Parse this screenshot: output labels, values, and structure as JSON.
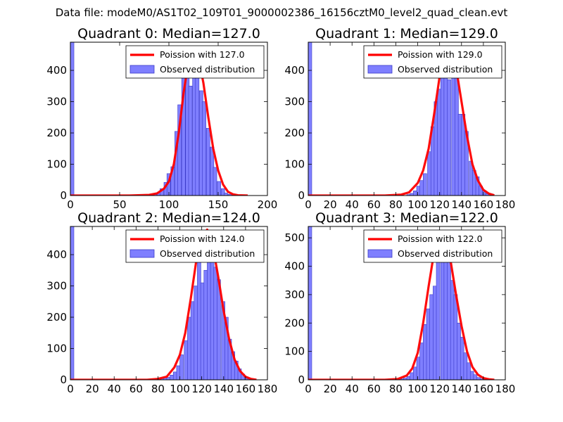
{
  "figure_title": "Data file: modeM0/AS1T02_109T01_9000002386_16156cztM0_level2_quad_clean.evt",
  "colors": {
    "hist_fill": "#7f7fff",
    "hist_edge": "#3a3ac8",
    "poisson_line": "#ff0000",
    "axes": "#000000"
  },
  "chart_data": [
    {
      "type": "bar",
      "title": "Quadrant 0: Median=127.0",
      "xlim": [
        0,
        200
      ],
      "ylim": [
        0,
        490
      ],
      "xticks": [
        0,
        50,
        100,
        150,
        200
      ],
      "xtick_labels": [
        "0",
        "50",
        "100",
        "150",
        "200"
      ],
      "yticks": [
        0,
        100,
        200,
        300,
        400
      ],
      "ytick_labels": [
        "0",
        "100",
        "200",
        "300",
        "400"
      ],
      "legend": {
        "position": "top-right",
        "line_label": "Poission with 127.0",
        "patch_label": "Observed distribution"
      },
      "bin_width": 3.6,
      "bins": [
        [
          0,
          490
        ],
        [
          80,
          3
        ],
        [
          84,
          6
        ],
        [
          88,
          9
        ],
        [
          91,
          22
        ],
        [
          95,
          42
        ],
        [
          98,
          70
        ],
        [
          102,
          92
        ],
        [
          106,
          205
        ],
        [
          109,
          290
        ],
        [
          113,
          375
        ],
        [
          117,
          395
        ],
        [
          120,
          350
        ],
        [
          124,
          440
        ],
        [
          127,
          470
        ],
        [
          131,
          335
        ],
        [
          134,
          300
        ],
        [
          138,
          215
        ],
        [
          142,
          155
        ],
        [
          145,
          90
        ],
        [
          149,
          45
        ],
        [
          153,
          22
        ],
        [
          156,
          8
        ],
        [
          160,
          4
        ],
        [
          164,
          2
        ]
      ],
      "poisson": [
        [
          0,
          0
        ],
        [
          60,
          0
        ],
        [
          80,
          2
        ],
        [
          88,
          7
        ],
        [
          95,
          22
        ],
        [
          100,
          45
        ],
        [
          105,
          100
        ],
        [
          110,
          200
        ],
        [
          115,
          330
        ],
        [
          120,
          430
        ],
        [
          125,
          475
        ],
        [
          130,
          440
        ],
        [
          135,
          360
        ],
        [
          140,
          250
        ],
        [
          145,
          150
        ],
        [
          150,
          80
        ],
        [
          155,
          35
        ],
        [
          160,
          12
        ],
        [
          165,
          4
        ],
        [
          170,
          1
        ],
        [
          180,
          0
        ]
      ]
    },
    {
      "type": "bar",
      "title": "Quadrant 1: Median=129.0",
      "xlim": [
        0,
        180
      ],
      "ylim": [
        0,
        490
      ],
      "xticks": [
        0,
        20,
        40,
        60,
        80,
        100,
        120,
        140,
        160,
        180
      ],
      "xtick_labels": [
        "0",
        "20",
        "40",
        "60",
        "80",
        "100",
        "120",
        "140",
        "160",
        "180"
      ],
      "yticks": [
        0,
        100,
        200,
        300,
        400
      ],
      "ytick_labels": [
        "0",
        "100",
        "200",
        "300",
        "400"
      ],
      "legend": {
        "position": "top-right",
        "line_label": "Poission with 129.0",
        "patch_label": "Observed distribution"
      },
      "bin_width": 3.2,
      "bins": [
        [
          0,
          490
        ],
        [
          90,
          3
        ],
        [
          93,
          7
        ],
        [
          96,
          15
        ],
        [
          99,
          30
        ],
        [
          102,
          48
        ],
        [
          105,
          70
        ],
        [
          109,
          140
        ],
        [
          112,
          220
        ],
        [
          115,
          300
        ],
        [
          118,
          340
        ],
        [
          121,
          430
        ],
        [
          124,
          465
        ],
        [
          127,
          370
        ],
        [
          131,
          400
        ],
        [
          134,
          375
        ],
        [
          137,
          260
        ],
        [
          140,
          260
        ],
        [
          143,
          205
        ],
        [
          147,
          110
        ],
        [
          150,
          80
        ],
        [
          153,
          60
        ],
        [
          156,
          30
        ],
        [
          159,
          15
        ],
        [
          162,
          6
        ],
        [
          166,
          3
        ]
      ],
      "poisson": [
        [
          0,
          0
        ],
        [
          70,
          0
        ],
        [
          85,
          3
        ],
        [
          92,
          10
        ],
        [
          100,
          40
        ],
        [
          105,
          80
        ],
        [
          110,
          150
        ],
        [
          115,
          260
        ],
        [
          120,
          380
        ],
        [
          125,
          450
        ],
        [
          130,
          470
        ],
        [
          135,
          410
        ],
        [
          140,
          300
        ],
        [
          145,
          190
        ],
        [
          150,
          100
        ],
        [
          155,
          48
        ],
        [
          160,
          18
        ],
        [
          165,
          6
        ],
        [
          170,
          1
        ]
      ]
    },
    {
      "type": "bar",
      "title": "Quadrant 2: Median=124.0",
      "xlim": [
        0,
        180
      ],
      "ylim": [
        0,
        490
      ],
      "xticks": [
        0,
        20,
        40,
        60,
        80,
        100,
        120,
        140,
        160,
        180
      ],
      "xtick_labels": [
        "0",
        "20",
        "40",
        "60",
        "80",
        "100",
        "120",
        "140",
        "160",
        "180"
      ],
      "yticks": [
        0,
        100,
        200,
        300,
        400
      ],
      "ytick_labels": [
        "0",
        "100",
        "200",
        "300",
        "400"
      ],
      "legend": {
        "position": "top-right",
        "line_label": "Poission with 124.0",
        "patch_label": "Observed distribution"
      },
      "bin_width": 3.2,
      "bins": [
        [
          0,
          490
        ],
        [
          78,
          2
        ],
        [
          82,
          4
        ],
        [
          85,
          6
        ],
        [
          88,
          8
        ],
        [
          91,
          15
        ],
        [
          94,
          25
        ],
        [
          97,
          45
        ],
        [
          100,
          80
        ],
        [
          104,
          125
        ],
        [
          107,
          200
        ],
        [
          110,
          250
        ],
        [
          113,
          300
        ],
        [
          116,
          390
        ],
        [
          119,
          310
        ],
        [
          122,
          350
        ],
        [
          125,
          410
        ],
        [
          128,
          470
        ],
        [
          131,
          360
        ],
        [
          134,
          320
        ],
        [
          138,
          250
        ],
        [
          141,
          200
        ],
        [
          144,
          130
        ],
        [
          147,
          90
        ],
        [
          150,
          60
        ],
        [
          153,
          35
        ],
        [
          156,
          18
        ],
        [
          159,
          8
        ],
        [
          162,
          3
        ]
      ],
      "poisson": [
        [
          0,
          0
        ],
        [
          70,
          0
        ],
        [
          80,
          3
        ],
        [
          88,
          10
        ],
        [
          95,
          40
        ],
        [
          100,
          80
        ],
        [
          105,
          150
        ],
        [
          110,
          260
        ],
        [
          115,
          380
        ],
        [
          120,
          450
        ],
        [
          125,
          480
        ],
        [
          130,
          430
        ],
        [
          135,
          330
        ],
        [
          140,
          220
        ],
        [
          145,
          130
        ],
        [
          150,
          65
        ],
        [
          155,
          28
        ],
        [
          160,
          10
        ],
        [
          165,
          3
        ],
        [
          170,
          0
        ]
      ]
    },
    {
      "type": "bar",
      "title": "Quadrant 3: Median=122.0",
      "xlim": [
        0,
        180
      ],
      "ylim": [
        0,
        540
      ],
      "xticks": [
        0,
        20,
        40,
        60,
        80,
        100,
        120,
        140,
        160,
        180
      ],
      "xtick_labels": [
        "0",
        "20",
        "40",
        "60",
        "80",
        "100",
        "120",
        "140",
        "160",
        "180"
      ],
      "yticks": [
        0,
        100,
        200,
        300,
        400,
        500
      ],
      "ytick_labels": [
        "0",
        "100",
        "200",
        "300",
        "400",
        "500"
      ],
      "legend": {
        "position": "top-right",
        "line_label": "Poission with 122.0",
        "patch_label": "Observed distribution"
      },
      "bin_width": 3.2,
      "bins": [
        [
          0,
          540
        ],
        [
          84,
          3
        ],
        [
          87,
          6
        ],
        [
          90,
          12
        ],
        [
          93,
          25
        ],
        [
          96,
          45
        ],
        [
          99,
          80
        ],
        [
          102,
          130
        ],
        [
          105,
          195
        ],
        [
          108,
          250
        ],
        [
          111,
          300
        ],
        [
          114,
          330
        ],
        [
          117,
          440
        ],
        [
          121,
          510
        ],
        [
          124,
          420
        ],
        [
          127,
          450
        ],
        [
          130,
          350
        ],
        [
          133,
          300
        ],
        [
          136,
          200
        ],
        [
          139,
          150
        ],
        [
          142,
          95
        ],
        [
          145,
          60
        ],
        [
          148,
          30
        ],
        [
          151,
          18
        ],
        [
          154,
          8
        ],
        [
          157,
          3
        ]
      ],
      "poisson": [
        [
          0,
          0
        ],
        [
          70,
          0
        ],
        [
          82,
          3
        ],
        [
          90,
          15
        ],
        [
          95,
          40
        ],
        [
          100,
          95
        ],
        [
          105,
          200
        ],
        [
          110,
          330
        ],
        [
          115,
          450
        ],
        [
          120,
          510
        ],
        [
          125,
          500
        ],
        [
          130,
          420
        ],
        [
          135,
          300
        ],
        [
          140,
          190
        ],
        [
          145,
          100
        ],
        [
          150,
          45
        ],
        [
          155,
          18
        ],
        [
          160,
          6
        ],
        [
          165,
          2
        ],
        [
          170,
          0
        ]
      ]
    }
  ]
}
